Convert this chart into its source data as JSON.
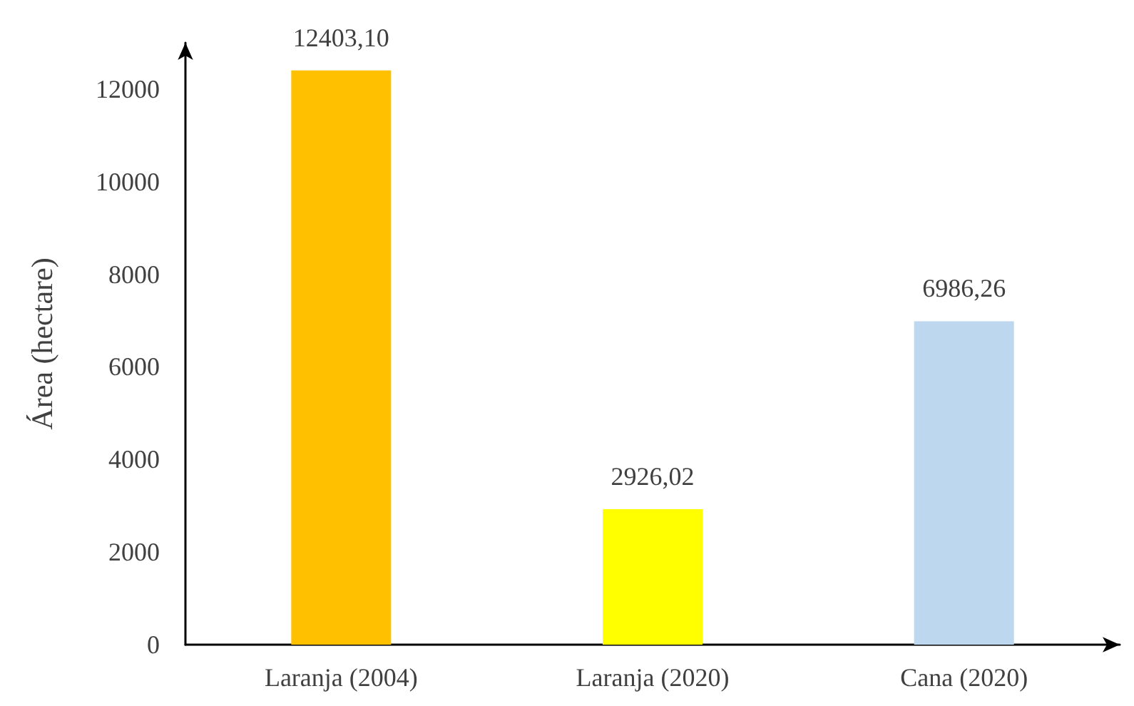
{
  "chart_data": {
    "type": "bar",
    "ylabel": "Área (hectare)",
    "categories": [
      "Laranja (2004)",
      "Laranja (2020)",
      "Cana (2020)"
    ],
    "values": [
      12403.1,
      2926.02,
      6986.26
    ],
    "colors": [
      "#ffc000",
      "#ffff00",
      "#bdd7ee"
    ],
    "value_labels": [
      "12403,10",
      "2926,02",
      "6986,26"
    ],
    "ylim": [
      0,
      13000
    ],
    "yticks": [
      0,
      2000,
      4000,
      6000,
      8000,
      10000,
      12000
    ],
    "grid": false
  }
}
